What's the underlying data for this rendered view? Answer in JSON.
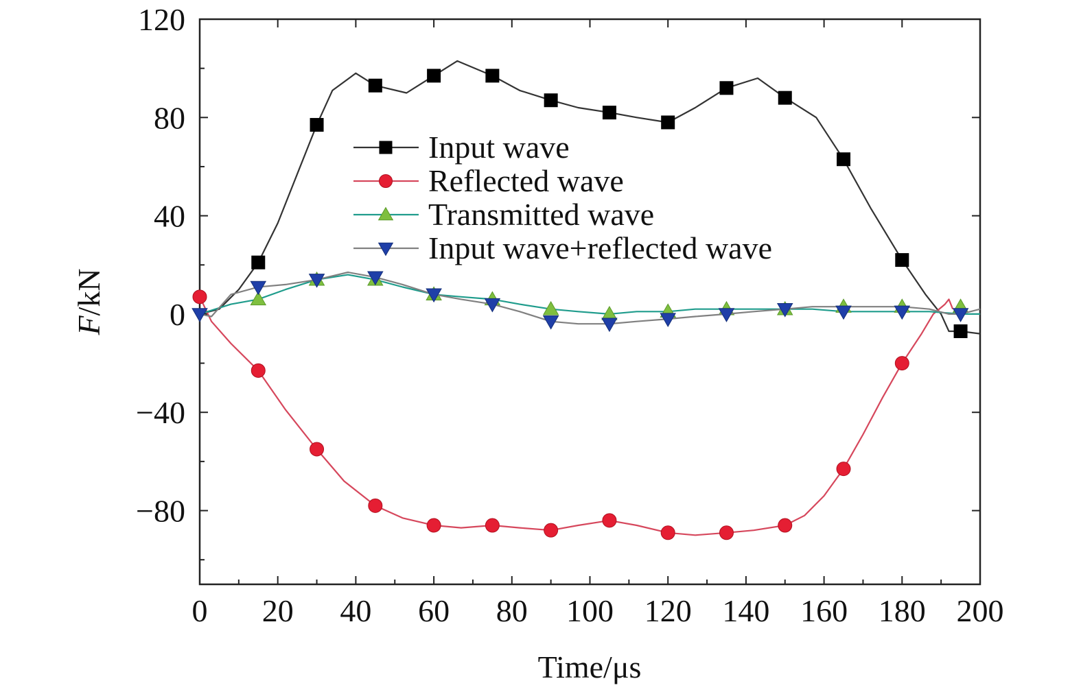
{
  "chart_data": {
    "type": "line",
    "title": "",
    "xlabel": "Time/μs",
    "ylabel_italic": "F",
    "ylabel_rest": "/kN",
    "xlim": [
      0,
      200
    ],
    "ylim": [
      -110,
      120
    ],
    "x_ticks": [
      0,
      20,
      40,
      60,
      80,
      100,
      120,
      140,
      160,
      180,
      200
    ],
    "x_tick_labels": [
      "0",
      "20",
      "40",
      "60",
      "80",
      "100",
      "120",
      "140",
      "160",
      "180",
      "200"
    ],
    "y_ticks": [
      120,
      80,
      40,
      0,
      -40,
      -80
    ],
    "y_tick_labels": [
      "120",
      "80",
      "40",
      "0",
      "−40",
      "−80"
    ],
    "grid": false,
    "legend_position": "upper-center",
    "series": [
      {
        "name": "Input wave",
        "color": "#333333",
        "marker_color": "#000000",
        "marker": "square",
        "points": [
          [
            0,
            0
          ],
          [
            5,
            2
          ],
          [
            10,
            10
          ],
          [
            15,
            21
          ],
          [
            20,
            37
          ],
          [
            25,
            57
          ],
          [
            30,
            77
          ],
          [
            34,
            91
          ],
          [
            40,
            98
          ],
          [
            45,
            93
          ],
          [
            53,
            90
          ],
          [
            60,
            97
          ],
          [
            66,
            103
          ],
          [
            75,
            97
          ],
          [
            82,
            91
          ],
          [
            90,
            87
          ],
          [
            97,
            84
          ],
          [
            105,
            82
          ],
          [
            112,
            80
          ],
          [
            120,
            78
          ],
          [
            127,
            84
          ],
          [
            135,
            92
          ],
          [
            143,
            96
          ],
          [
            150,
            88
          ],
          [
            158,
            80
          ],
          [
            165,
            63
          ],
          [
            172,
            43
          ],
          [
            180,
            22
          ],
          [
            186,
            8
          ],
          [
            190,
            0
          ],
          [
            192,
            -7
          ],
          [
            195,
            -7
          ],
          [
            200,
            -8
          ]
        ],
        "markers": [
          [
            15,
            21
          ],
          [
            30,
            77
          ],
          [
            45,
            93
          ],
          [
            60,
            97
          ],
          [
            75,
            97
          ],
          [
            90,
            87
          ],
          [
            105,
            82
          ],
          [
            120,
            78
          ],
          [
            135,
            92
          ],
          [
            150,
            88
          ],
          [
            165,
            63
          ],
          [
            180,
            22
          ],
          [
            195,
            -7
          ]
        ]
      },
      {
        "name": "Reflected wave",
        "color": "#d6475c",
        "marker_color": "#e51e33",
        "marker": "circle",
        "points": [
          [
            0,
            7
          ],
          [
            3,
            -3
          ],
          [
            8,
            -12
          ],
          [
            15,
            -23
          ],
          [
            22,
            -39
          ],
          [
            30,
            -55
          ],
          [
            37,
            -68
          ],
          [
            45,
            -78
          ],
          [
            52,
            -83
          ],
          [
            60,
            -86
          ],
          [
            67,
            -87
          ],
          [
            75,
            -86
          ],
          [
            82,
            -87
          ],
          [
            90,
            -88
          ],
          [
            97,
            -86
          ],
          [
            105,
            -84
          ],
          [
            112,
            -86
          ],
          [
            120,
            -89
          ],
          [
            127,
            -90
          ],
          [
            135,
            -89
          ],
          [
            142,
            -88
          ],
          [
            150,
            -86
          ],
          [
            155,
            -82
          ],
          [
            160,
            -74
          ],
          [
            165,
            -63
          ],
          [
            170,
            -49
          ],
          [
            175,
            -34
          ],
          [
            180,
            -20
          ],
          [
            185,
            -8
          ],
          [
            188,
            0
          ],
          [
            191,
            4
          ],
          [
            192,
            6
          ],
          [
            193,
            2
          ]
        ],
        "markers": [
          [
            0,
            7
          ],
          [
            15,
            -23
          ],
          [
            30,
            -55
          ],
          [
            45,
            -78
          ],
          [
            60,
            -86
          ],
          [
            75,
            -86
          ],
          [
            90,
            -88
          ],
          [
            105,
            -84
          ],
          [
            120,
            -89
          ],
          [
            135,
            -89
          ],
          [
            150,
            -86
          ],
          [
            165,
            -63
          ],
          [
            180,
            -20
          ]
        ]
      },
      {
        "name": "Transmitted wave",
        "color": "#1f9c8c",
        "marker_color": "#7fbf3f",
        "marker": "triangle-up",
        "points": [
          [
            0,
            0
          ],
          [
            8,
            4
          ],
          [
            15,
            6
          ],
          [
            22,
            10
          ],
          [
            30,
            14
          ],
          [
            38,
            16
          ],
          [
            45,
            14
          ],
          [
            52,
            11
          ],
          [
            60,
            8
          ],
          [
            67,
            7
          ],
          [
            75,
            6
          ],
          [
            82,
            4
          ],
          [
            90,
            2
          ],
          [
            97,
            1
          ],
          [
            105,
            0
          ],
          [
            112,
            1
          ],
          [
            120,
            1
          ],
          [
            127,
            2
          ],
          [
            135,
            2
          ],
          [
            142,
            2
          ],
          [
            150,
            2
          ],
          [
            157,
            2
          ],
          [
            165,
            1
          ],
          [
            172,
            1
          ],
          [
            180,
            1
          ],
          [
            187,
            1
          ],
          [
            195,
            0
          ],
          [
            200,
            0
          ]
        ],
        "markers": [
          [
            15,
            6
          ],
          [
            30,
            14
          ],
          [
            45,
            14
          ],
          [
            60,
            8
          ],
          [
            75,
            6
          ],
          [
            90,
            2
          ],
          [
            105,
            0
          ],
          [
            120,
            1
          ],
          [
            135,
            2
          ],
          [
            150,
            2
          ],
          [
            165,
            3
          ],
          [
            180,
            3
          ],
          [
            195,
            3
          ]
        ]
      },
      {
        "name": "Input wave+reflected wave",
        "color": "#808080",
        "marker_color": "#1f3fa8",
        "marker": "triangle-down",
        "points": [
          [
            0,
            0
          ],
          [
            3,
            -1
          ],
          [
            8,
            8
          ],
          [
            15,
            11
          ],
          [
            22,
            12
          ],
          [
            30,
            14
          ],
          [
            38,
            17
          ],
          [
            45,
            15
          ],
          [
            52,
            12
          ],
          [
            60,
            8
          ],
          [
            67,
            6
          ],
          [
            75,
            4
          ],
          [
            82,
            1
          ],
          [
            90,
            -3
          ],
          [
            97,
            -4
          ],
          [
            105,
            -4
          ],
          [
            112,
            -3
          ],
          [
            120,
            -2
          ],
          [
            127,
            -1
          ],
          [
            135,
            0
          ],
          [
            142,
            1
          ],
          [
            150,
            2
          ],
          [
            157,
            3
          ],
          [
            165,
            3
          ],
          [
            172,
            3
          ],
          [
            180,
            3
          ],
          [
            187,
            2
          ],
          [
            192,
            0
          ],
          [
            195,
            0
          ],
          [
            200,
            2
          ]
        ],
        "markers": [
          [
            0,
            0
          ],
          [
            15,
            11
          ],
          [
            30,
            14
          ],
          [
            45,
            15
          ],
          [
            60,
            8
          ],
          [
            75,
            4
          ],
          [
            90,
            -3
          ],
          [
            105,
            -4
          ],
          [
            120,
            -2
          ],
          [
            135,
            0
          ],
          [
            150,
            2
          ],
          [
            165,
            1
          ],
          [
            180,
            1
          ],
          [
            195,
            0
          ]
        ]
      }
    ]
  }
}
